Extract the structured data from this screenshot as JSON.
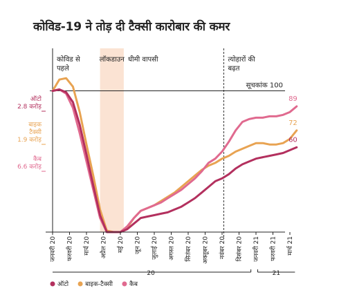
{
  "title": "कोविड-19 ने तोड़ दी टैक्सी कारोबार की कमर",
  "chart_data": {
    "type": "line",
    "title": "कोविड-19 ने तोड़ दी टैक्सी कारोबार की कमर",
    "x": [
      "जनवरी 20",
      "फरवरी 20",
      "मार्च 20",
      "अप्रैल 20",
      "मई 20",
      "जून 20",
      "जुलाई 20",
      "अगस्त 20",
      "सितंबर 20",
      "अक्तूबर 20",
      "नवंबर 20",
      "दिसंबर 20",
      "जनवरी 21",
      "फरवरी 21",
      "मार्च 21"
    ],
    "year_groups": [
      "20",
      "21"
    ],
    "ylim": [
      0,
      135
    ],
    "reference_line": {
      "value": 100,
      "label": "सूचकांक 100"
    },
    "phases": [
      {
        "label_lines": [
          "कोविड से",
          "पहले"
        ],
        "start": 0,
        "end": 2,
        "shaded": false
      },
      {
        "label_lines": [
          "लॉकडाउन"
        ],
        "start": 2.8,
        "end": 4.2,
        "shaded": true
      },
      {
        "label_lines": [
          "धीमी वापसी"
        ],
        "start": 4.2,
        "end": 10.1,
        "shaded": false
      },
      {
        "label_lines": [
          "त्योहारों की",
          "बढ़त"
        ],
        "start": 10.1,
        "end": 14.7,
        "shaded": false
      }
    ],
    "series": [
      {
        "name": "ऑटो",
        "color": "#b3305e",
        "start_label_lines": [
          "ऑटो",
          "2.8 करोड़"
        ],
        "end_label": "60",
        "x": [
          0,
          0.4,
          0.8,
          1.2,
          1.6,
          2,
          2.4,
          2.8,
          3.2,
          3.6,
          4,
          4.4,
          4.8,
          5.2,
          5.6,
          6,
          6.4,
          6.8,
          7.2,
          7.6,
          8,
          8.4,
          8.8,
          9.2,
          9.6,
          10,
          10.4,
          10.8,
          11.2,
          11.6,
          12,
          12.4,
          12.8,
          13.2,
          13.6,
          14,
          14.4
        ],
        "values": [
          100,
          101,
          99,
          92,
          76,
          55,
          33,
          12,
          0,
          0,
          0,
          2,
          6,
          10,
          11,
          12,
          13,
          14,
          16,
          18,
          21,
          24,
          28,
          32,
          36,
          38,
          41,
          45,
          48,
          50,
          52,
          53,
          54,
          55,
          56,
          58,
          60
        ]
      },
      {
        "name": "बाइक-टैक्सी",
        "color": "#e8a352",
        "start_label_lines": [
          "बाइक",
          "टैक्सी",
          "1.9 करोड़"
        ],
        "end_label": "72",
        "x": [
          0,
          0.4,
          0.8,
          1.2,
          1.6,
          2,
          2.4,
          2.8,
          3.2,
          3.6,
          4,
          4.4,
          4.8,
          5.2,
          5.6,
          6,
          6.4,
          6.8,
          7.2,
          7.6,
          8,
          8.4,
          8.8,
          9.2,
          9.6,
          10,
          10.4,
          10.8,
          11.2,
          11.6,
          12,
          12.4,
          12.8,
          13.2,
          13.6,
          14,
          14.4
        ],
        "values": [
          100,
          108,
          109,
          103,
          85,
          62,
          40,
          16,
          1,
          0,
          0,
          3,
          10,
          15,
          17,
          19,
          22,
          25,
          28,
          32,
          36,
          40,
          44,
          47,
          49,
          52,
          54,
          57,
          59,
          61,
          63,
          63,
          62,
          62,
          63,
          66,
          72
        ]
      },
      {
        "name": "कैब",
        "color": "#e06a8f",
        "start_label_lines": [
          "कैब",
          "6.6 करोड़"
        ],
        "end_label": "89",
        "x": [
          0,
          0.4,
          0.8,
          1.2,
          1.6,
          2,
          2.4,
          2.8,
          3.2,
          3.6,
          4,
          4.4,
          4.8,
          5.2,
          5.6,
          6,
          6.4,
          6.8,
          7.2,
          7.6,
          8,
          8.4,
          8.8,
          9.2,
          9.6,
          10,
          10.4,
          10.8,
          11.2,
          11.6,
          12,
          12.4,
          12.8,
          13.2,
          13.6,
          14,
          14.4
        ],
        "values": [
          100,
          101,
          98,
          88,
          70,
          50,
          30,
          10,
          0,
          0,
          0,
          4,
          10,
          15,
          17,
          19,
          21,
          24,
          27,
          30,
          34,
          38,
          43,
          49,
          52,
          57,
          64,
          72,
          78,
          80,
          81,
          81,
          82,
          82,
          83,
          85,
          89
        ]
      }
    ],
    "legend": {
      "position": "bottom-left"
    }
  }
}
